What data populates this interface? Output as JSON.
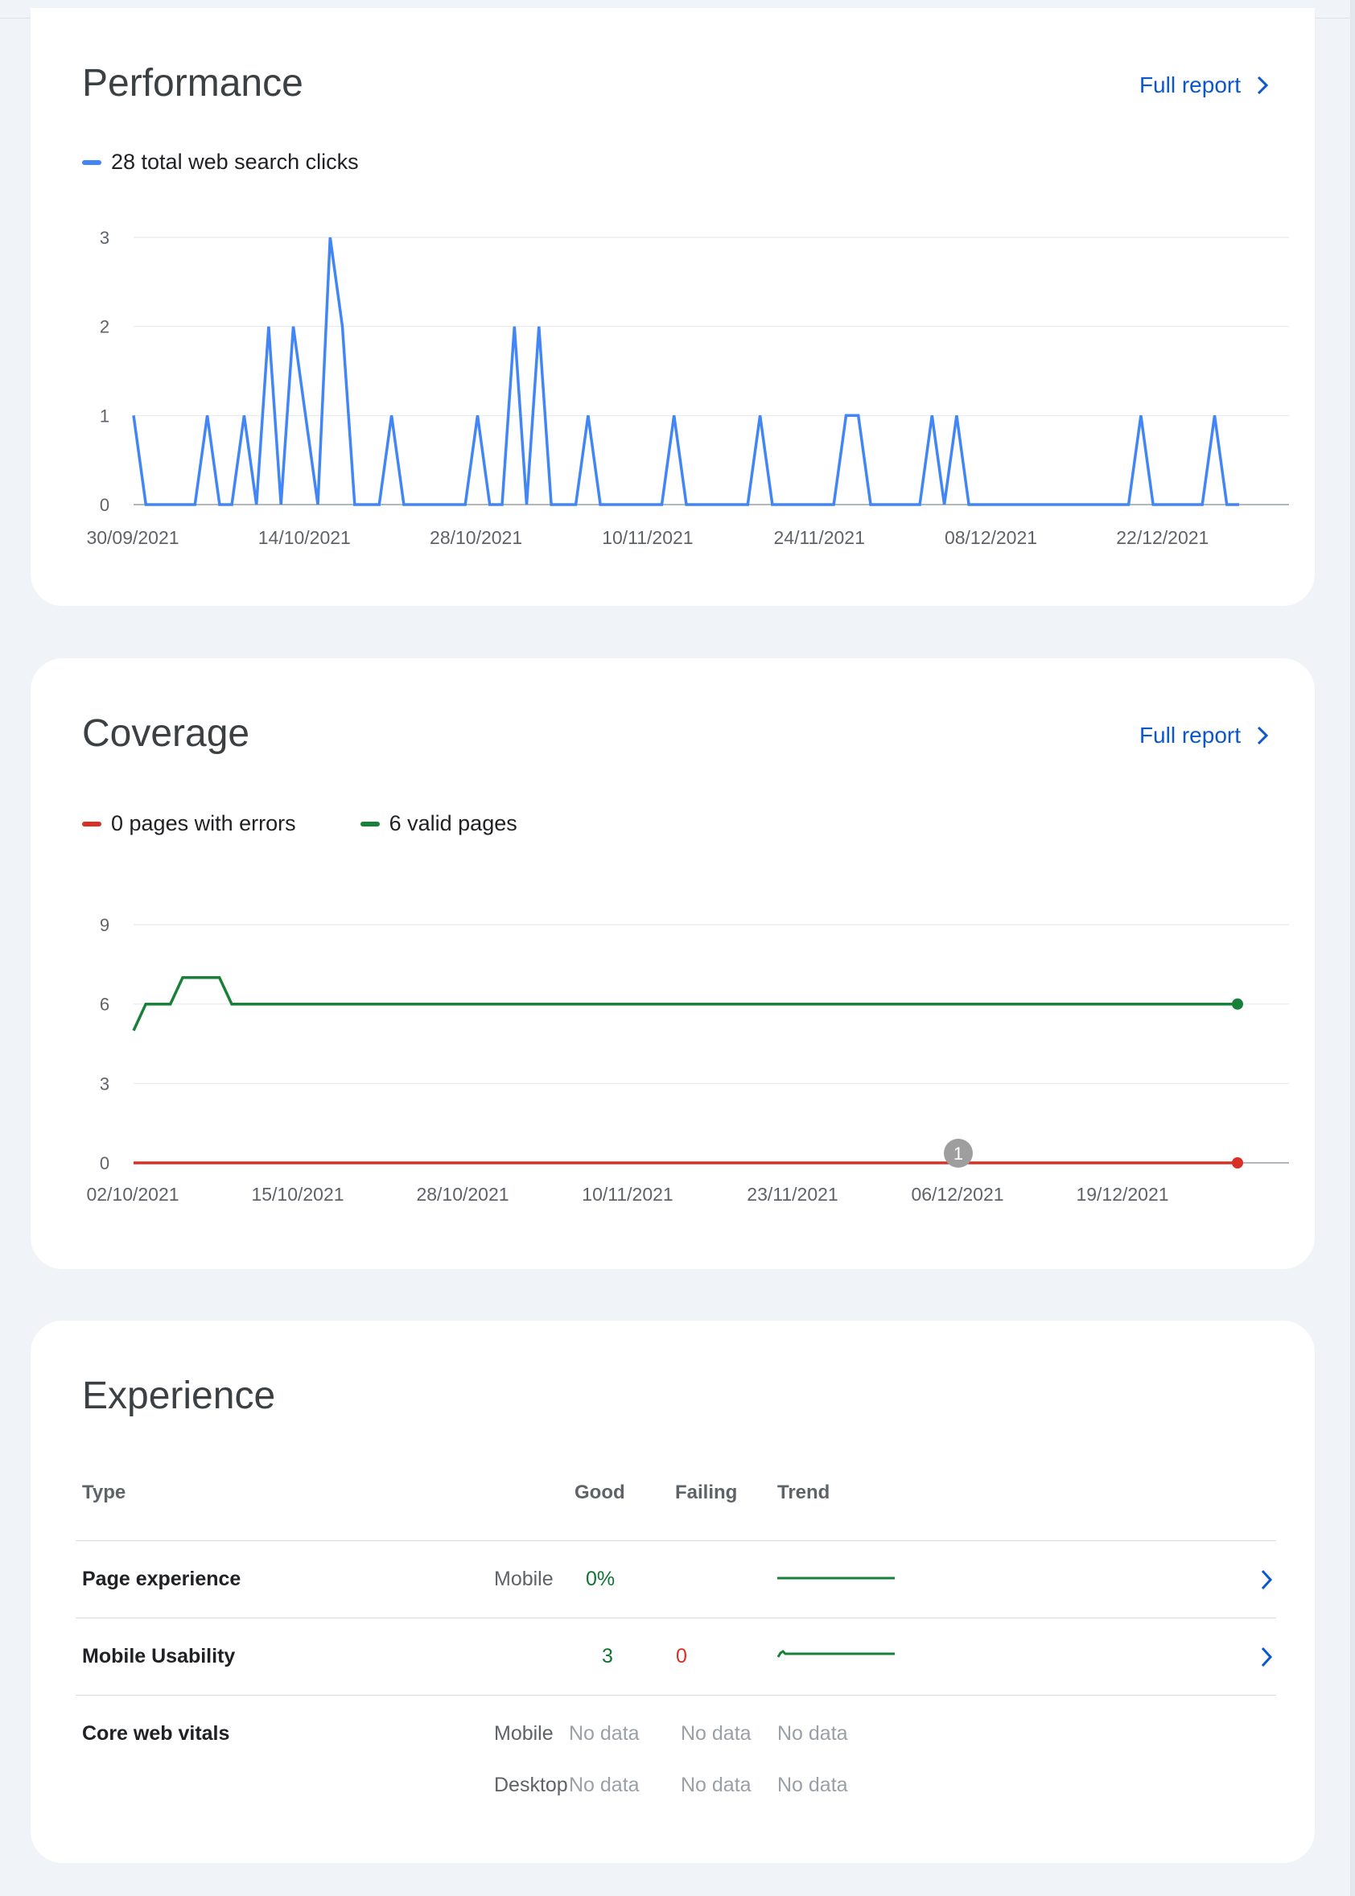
{
  "performance": {
    "title": "Performance",
    "full_report_label": "Full report",
    "legend": [
      {
        "label": "28 total web search clicks",
        "color": "#4285f4"
      }
    ],
    "chart_data": {
      "type": "line",
      "series": [
        {
          "name": "28 total web search clicks",
          "color": "#4285f4",
          "values": [
            1,
            0,
            0,
            0,
            0,
            0,
            1,
            0,
            0,
            1,
            0,
            2,
            0,
            2,
            1,
            0,
            3,
            2,
            0,
            0,
            0,
            1,
            0,
            0,
            0,
            0,
            0,
            0,
            1,
            0,
            0,
            2,
            0,
            2,
            0,
            0,
            0,
            1,
            0,
            0,
            0,
            0,
            0,
            0,
            1,
            0,
            0,
            0,
            0,
            0,
            0,
            1,
            0,
            0,
            0,
            0,
            0,
            0,
            1,
            1,
            0,
            0,
            0,
            0,
            0,
            1,
            0,
            1,
            0,
            0,
            0,
            0,
            0,
            0,
            0,
            0,
            0,
            0,
            0,
            0,
            0,
            0,
            1,
            0,
            0,
            0,
            0,
            0,
            1,
            0,
            0
          ]
        }
      ],
      "x_tick_labels": [
        "30/09/2021",
        "14/10/2021",
        "28/10/2021",
        "10/11/2021",
        "24/11/2021",
        "08/12/2021",
        "22/12/2021"
      ],
      "y_ticks": [
        0,
        1,
        2,
        3
      ],
      "ylim": [
        0,
        3
      ],
      "grid": true
    }
  },
  "coverage": {
    "title": "Coverage",
    "full_report_label": "Full report",
    "legend": [
      {
        "label": "0 pages with errors",
        "color": "#d93025"
      },
      {
        "label": "6 valid pages",
        "color": "#188038"
      }
    ],
    "annotation": "1",
    "chart_data": {
      "type": "line",
      "series": [
        {
          "name": "6 valid pages",
          "color": "#188038",
          "values": [
            5,
            6,
            6,
            6,
            7,
            7,
            7,
            7,
            6,
            6,
            6,
            6,
            6,
            6,
            6,
            6,
            6,
            6,
            6,
            6,
            6,
            6,
            6,
            6,
            6,
            6,
            6,
            6,
            6,
            6,
            6,
            6,
            6,
            6,
            6,
            6,
            6,
            6,
            6,
            6,
            6,
            6,
            6,
            6,
            6,
            6,
            6,
            6,
            6,
            6,
            6,
            6,
            6,
            6,
            6,
            6,
            6,
            6,
            6,
            6,
            6,
            6,
            6,
            6,
            6,
            6,
            6,
            6,
            6,
            6,
            6,
            6,
            6,
            6,
            6,
            6,
            6,
            6,
            6,
            6,
            6,
            6,
            6,
            6,
            6,
            6,
            6,
            6,
            6,
            6,
            6
          ]
        },
        {
          "name": "0 pages with errors",
          "color": "#d93025",
          "values": [
            0,
            0,
            0,
            0,
            0,
            0,
            0,
            0,
            0,
            0,
            0,
            0,
            0,
            0,
            0,
            0,
            0,
            0,
            0,
            0,
            0,
            0,
            0,
            0,
            0,
            0,
            0,
            0,
            0,
            0,
            0,
            0,
            0,
            0,
            0,
            0,
            0,
            0,
            0,
            0,
            0,
            0,
            0,
            0,
            0,
            0,
            0,
            0,
            0,
            0,
            0,
            0,
            0,
            0,
            0,
            0,
            0,
            0,
            0,
            0,
            0,
            0,
            0,
            0,
            0,
            0,
            0,
            0,
            0,
            0,
            0,
            0,
            0,
            0,
            0,
            0,
            0,
            0,
            0,
            0,
            0,
            0,
            0,
            0,
            0,
            0,
            0,
            0,
            0,
            0,
            0
          ]
        }
      ],
      "x_tick_labels": [
        "02/10/2021",
        "15/10/2021",
        "28/10/2021",
        "10/11/2021",
        "23/11/2021",
        "06/12/2021",
        "19/12/2021"
      ],
      "y_ticks": [
        0,
        3,
        6,
        9
      ],
      "ylim": [
        0,
        9
      ],
      "grid": true
    }
  },
  "experience": {
    "title": "Experience",
    "headers": {
      "type": "Type",
      "good": "Good",
      "failing": "Failing",
      "trend": "Trend"
    },
    "rows": {
      "page_experience": {
        "name": "Page experience",
        "device": "Mobile",
        "good": "0%"
      },
      "mobile_usability": {
        "name": "Mobile Usability",
        "good": "3",
        "failing": "0"
      },
      "core_web_vitals": {
        "name": "Core web vitals",
        "mobile": {
          "device": "Mobile",
          "good": "No data",
          "failing": "No data",
          "trend": "No data"
        },
        "desktop": {
          "device": "Desktop",
          "good": "No data",
          "failing": "No data",
          "trend": "No data"
        }
      }
    },
    "trend_color": "#188038"
  }
}
